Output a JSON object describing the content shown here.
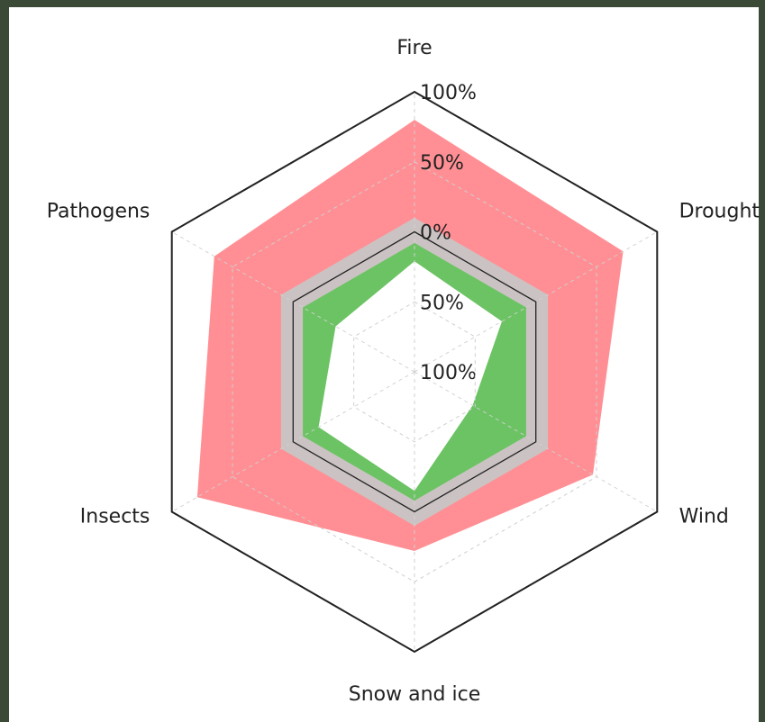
{
  "chart_data": {
    "type": "radar",
    "categories": [
      "Fire",
      "Drought",
      "Wind",
      "Snow and ice",
      "Insects",
      "Pathogens"
    ],
    "series": [
      {
        "color": "#ff8f94",
        "values": [
          80,
          72,
          47,
          28,
          79,
          65
        ]
      },
      {
        "color": "#6cc364",
        "values": [
          -21,
          -28,
          -52,
          -15,
          -21,
          -35
        ]
      }
    ],
    "band": {
      "lower": -8,
      "upper": 10,
      "color": "#cbc3c3"
    },
    "rlim": [
      -100,
      100
    ],
    "rticks": [
      {
        "value": -100,
        "label": "100%"
      },
      {
        "value": -50,
        "label": "50%"
      },
      {
        "value": 0,
        "label": "0%"
      },
      {
        "value": 50,
        "label": "50%"
      },
      {
        "value": 100,
        "label": "100%"
      }
    ],
    "grid": true
  }
}
